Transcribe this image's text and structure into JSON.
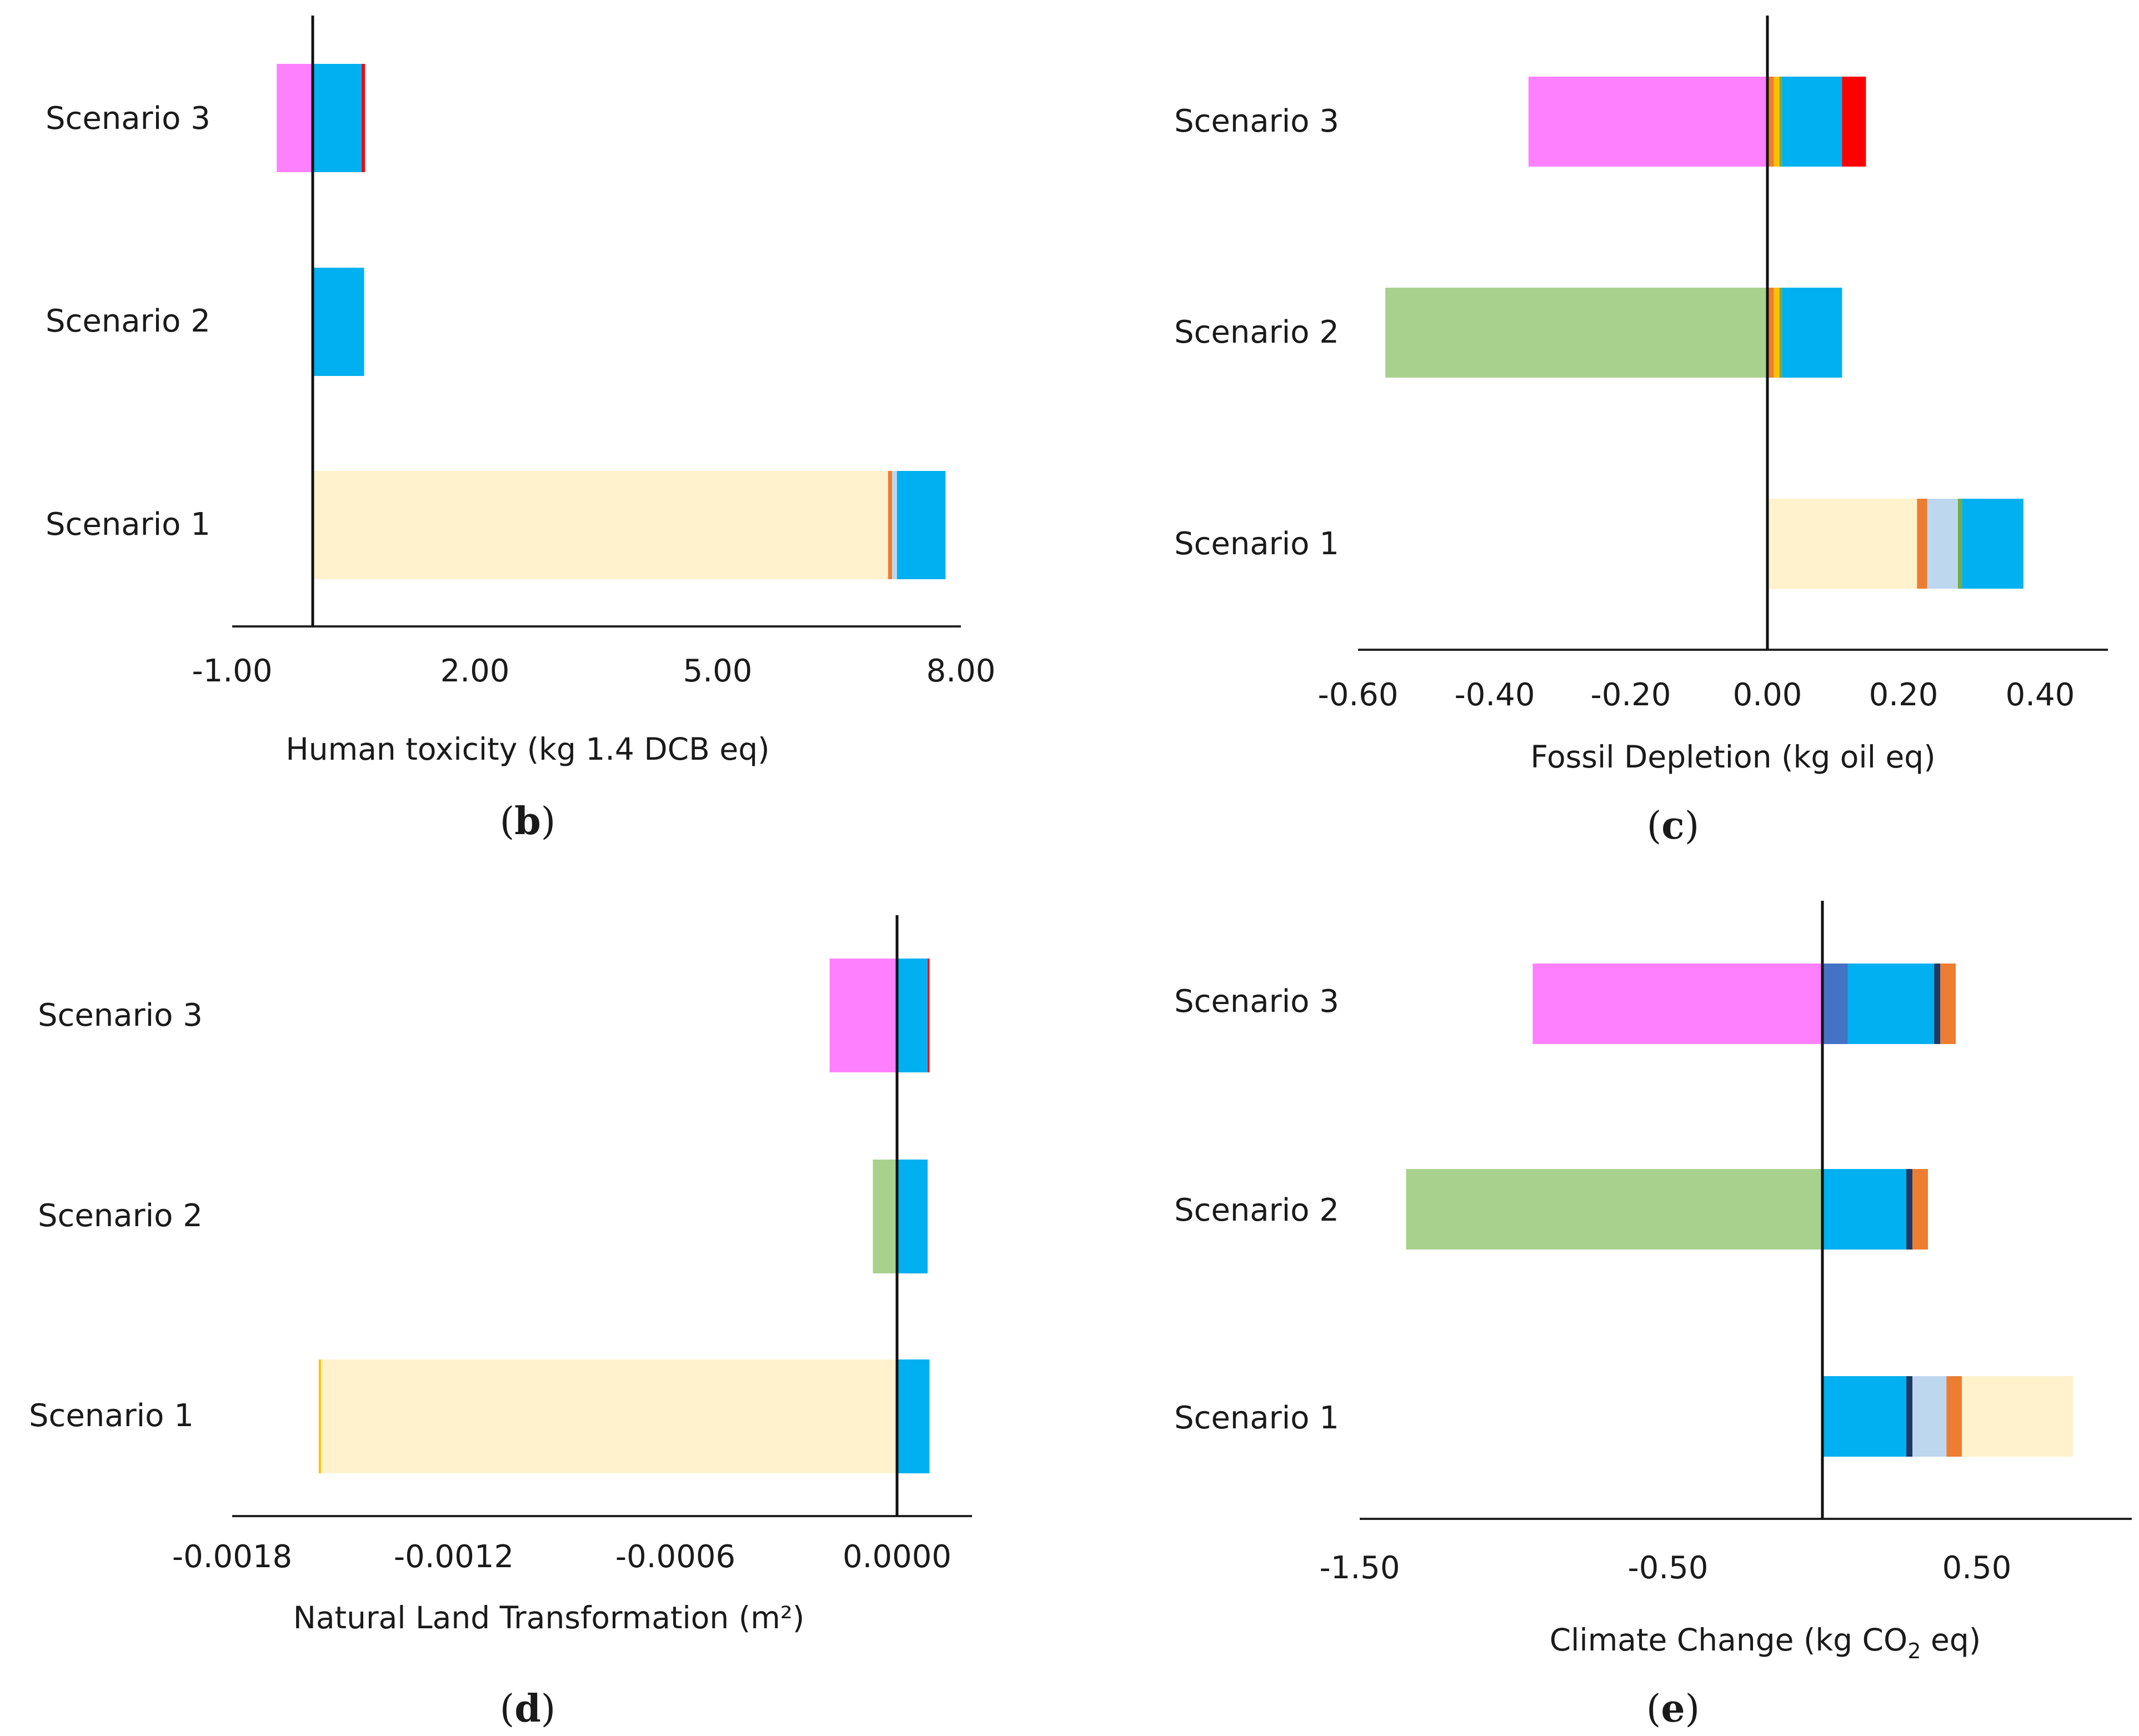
{
  "chart_data": [
    {
      "id": "b",
      "type": "bar",
      "orientation": "horizontal",
      "stacked": true,
      "panel_label": "(b)",
      "xlabel": "Human toxicity  (kg 1.4 DCB eq)",
      "xlim": [
        -1.0,
        8.0
      ],
      "xticks": [
        -1.0,
        2.0,
        5.0,
        8.0
      ],
      "tick_labels": [
        "-1.00",
        "2.00",
        "5.00",
        "8.00"
      ],
      "categories": [
        "Scenario 1",
        "Scenario 2",
        "Scenario 3"
      ],
      "series": [
        {
          "color": "#ff80ff",
          "values": [
            0,
            0,
            -0.45
          ]
        },
        {
          "color": "#a9d18e",
          "values": [
            0,
            -0.02,
            0
          ]
        },
        {
          "color": "#fff2cc",
          "values": [
            7.1,
            0,
            0
          ]
        },
        {
          "color": "#ed7d31",
          "values": [
            0.05,
            0,
            0
          ]
        },
        {
          "color": "#bdd7ee",
          "values": [
            0.06,
            0,
            0
          ]
        },
        {
          "color": "#00b0f0",
          "values": [
            0.6,
            0.63,
            0.6
          ]
        },
        {
          "color": "#ff0000",
          "values": [
            0,
            0,
            0.04
          ]
        }
      ]
    },
    {
      "id": "c",
      "type": "bar",
      "orientation": "horizontal",
      "stacked": true,
      "panel_label": "(c)",
      "xlabel": "Fossil Depletion (kg oil eq)",
      "xlim": [
        -0.6,
        0.5
      ],
      "xticks": [
        -0.6,
        -0.4,
        -0.2,
        0.0,
        0.2,
        0.4
      ],
      "tick_labels": [
        "-0.60",
        "-0.40",
        "-0.20",
        "0.00",
        "0.20",
        "0.40"
      ],
      "categories": [
        "Scenario 1",
        "Scenario 2",
        "Scenario 3"
      ],
      "series": [
        {
          "color": "#ff80ff",
          "values": [
            0,
            0,
            -0.35
          ]
        },
        {
          "color": "#a9d18e",
          "values": [
            0,
            -0.56,
            0
          ]
        },
        {
          "color": "#fff2cc",
          "values": [
            0.22,
            0,
            0
          ]
        },
        {
          "color": "#ed7d31",
          "values": [
            0.015,
            0.01,
            0.01
          ]
        },
        {
          "color": "#ffc000",
          "values": [
            0,
            0.008,
            0.008
          ]
        },
        {
          "color": "#bdd7ee",
          "values": [
            0.045,
            0,
            0
          ]
        },
        {
          "color": "#70ad47",
          "values": [
            0.006,
            0.004,
            0.004
          ]
        },
        {
          "color": "#00b0f0",
          "values": [
            0.09,
            0.088,
            0.088
          ]
        },
        {
          "color": "#ff0000",
          "values": [
            0,
            0,
            0.035
          ]
        }
      ]
    },
    {
      "id": "d",
      "type": "bar",
      "orientation": "horizontal",
      "stacked": true,
      "panel_label": "(d)",
      "xlabel": "Natural Land Transformation (m²)",
      "xlim": [
        -0.0018,
        0.0002
      ],
      "xticks": [
        -0.0018,
        -0.0012,
        -0.0006,
        0.0
      ],
      "tick_labels": [
        "-0.0018",
        "-0.0012",
        "-0.0006",
        "0.0000"
      ],
      "categories": [
        "Scenario 1",
        "Scenario 2",
        "Scenario 3"
      ],
      "series": [
        {
          "color": "#ff80ff",
          "values": [
            0,
            0,
            -0.000185
          ]
        },
        {
          "color": "#a9d18e",
          "values": [
            0,
            -6.8e-05,
            0
          ]
        },
        {
          "color": "#fff2cc",
          "values": [
            -0.00156,
            0,
            0
          ]
        },
        {
          "color": "#ffc000",
          "values": [
            -6e-06,
            0,
            0
          ]
        },
        {
          "color": "#00b0f0",
          "values": [
            8.5e-05,
            8e-05,
            8e-05
          ]
        },
        {
          "color": "#ff0000",
          "values": [
            0,
            0,
            5e-06
          ]
        }
      ]
    },
    {
      "id": "e",
      "type": "bar",
      "orientation": "horizontal",
      "stacked": true,
      "panel_label": "(e)",
      "xlabel_parts": [
        "Climate Change (kg CO",
        "2",
        " eq)"
      ],
      "xlim": [
        -1.5,
        1.0
      ],
      "xticks": [
        -1.5,
        -0.5,
        0.5
      ],
      "tick_labels": [
        "-1.50",
        "-0.50",
        "0.50"
      ],
      "categories": [
        "Scenario 1",
        "Scenario 2",
        "Scenario 3"
      ],
      "series": [
        {
          "color": "#ff80ff",
          "values": [
            0,
            0,
            -0.94
          ]
        },
        {
          "color": "#a9d18e",
          "values": [
            0,
            -1.35,
            0
          ]
        },
        {
          "color": "#4472c4",
          "values": [
            0,
            0,
            0.08
          ]
        },
        {
          "color": "#00b0f0",
          "values": [
            0.27,
            0.27,
            0.28
          ]
        },
        {
          "color": "#203864",
          "values": [
            0.02,
            0.02,
            0.02
          ]
        },
        {
          "color": "#bdd7ee",
          "values": [
            0.11,
            0,
            0
          ]
        },
        {
          "color": "#ed7d31",
          "values": [
            0.05,
            0.05,
            0.05
          ]
        },
        {
          "color": "#fff2cc",
          "values": [
            0.36,
            0,
            0
          ]
        }
      ]
    }
  ]
}
